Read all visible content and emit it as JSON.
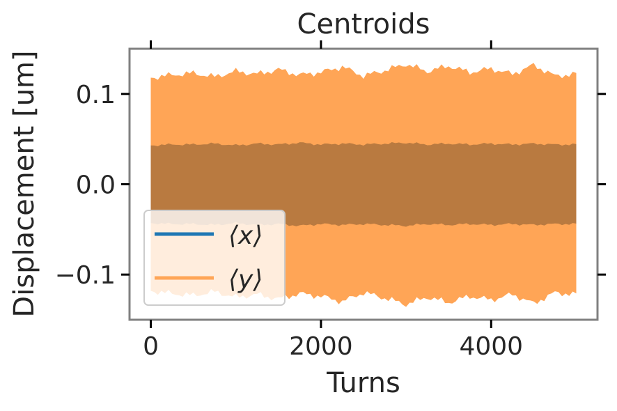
{
  "chart_data": {
    "type": "line",
    "title": "Centroids",
    "xlabel": "Turns",
    "ylabel": "Displacement [um]",
    "xlim": [
      -250,
      5250
    ],
    "ylim": [
      -0.15,
      0.15
    ],
    "xticks": [
      {
        "value": 0,
        "label": "0"
      },
      {
        "value": 2000,
        "label": "2000"
      },
      {
        "value": 4000,
        "label": "4000"
      }
    ],
    "yticks": [
      {
        "value": 0.1,
        "label": "0.1"
      },
      {
        "value": 0.0,
        "label": "0.0"
      },
      {
        "value": -0.1,
        "label": "−0.1"
      }
    ],
    "grid": false,
    "legend_position": "lower-left",
    "series": [
      {
        "name": "⟨x⟩",
        "color": "#1f77b4",
        "x_range": [
          0,
          5000
        ],
        "amplitude_envelope": [
          0.043,
          0.044,
          0.044,
          0.045,
          0.043,
          0.045,
          0.044,
          0.046,
          0.044,
          0.045,
          0.044,
          0.045,
          0.046,
          0.044,
          0.045,
          0.044,
          0.045,
          0.044,
          0.045,
          0.044,
          0.044
        ]
      },
      {
        "name": "⟨y⟩",
        "color": "#ffa556",
        "x_range": [
          0,
          5000
        ],
        "amplitude_envelope": [
          0.118,
          0.121,
          0.123,
          0.119,
          0.125,
          0.122,
          0.127,
          0.121,
          0.124,
          0.13,
          0.12,
          0.126,
          0.133,
          0.125,
          0.131,
          0.124,
          0.128,
          0.122,
          0.132,
          0.12,
          0.122
        ]
      }
    ]
  }
}
